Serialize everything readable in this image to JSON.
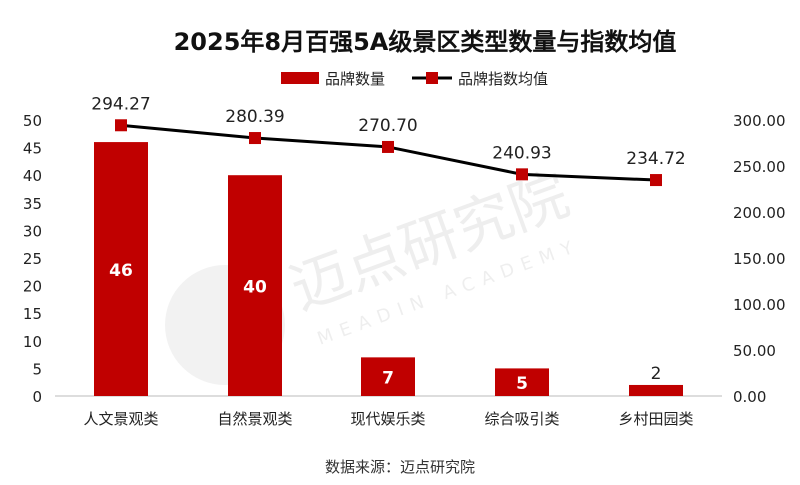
{
  "chart_data": {
    "type": "bar+line",
    "title": "2025年8月百强5A级景区类型数量与指数均值",
    "categories": [
      "人文景观类",
      "自然景观类",
      "现代娱乐类",
      "综合吸引类",
      "乡村田园类"
    ],
    "series": [
      {
        "name": "品牌数量",
        "type": "bar",
        "axis": "left",
        "values": [
          46,
          40,
          7,
          5,
          2
        ],
        "color": "#C00000"
      },
      {
        "name": "品牌指数均值",
        "type": "line",
        "axis": "right",
        "values": [
          294.27,
          280.39,
          270.7,
          240.93,
          234.72
        ],
        "color": "#000000",
        "marker_color": "#C00000"
      }
    ],
    "left_axis": {
      "ylim": [
        0,
        50
      ],
      "ticks": [
        "0",
        "5",
        "10",
        "15",
        "20",
        "25",
        "30",
        "35",
        "40",
        "45",
        "50"
      ]
    },
    "right_axis": {
      "ylim": [
        0,
        300
      ],
      "ticks": [
        "0.00",
        "50.00",
        "100.00",
        "150.00",
        "200.00",
        "250.00",
        "300.00"
      ]
    },
    "legend": "top-center",
    "grid": false,
    "source": "数据来源：迈点研究院",
    "watermark": {
      "cn": "迈点研究院",
      "en": "MEADIN ACADEMY"
    }
  }
}
